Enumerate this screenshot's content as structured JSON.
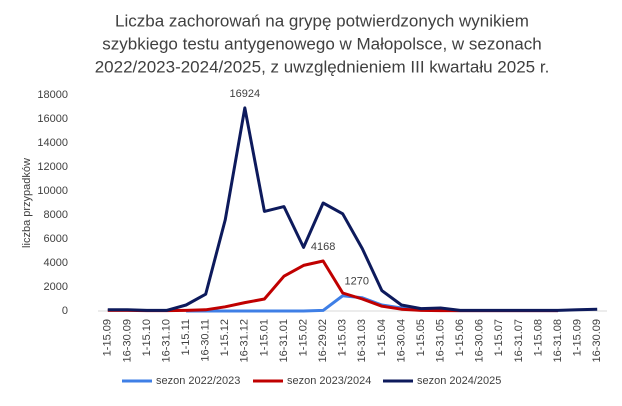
{
  "chart_data": {
    "type": "line",
    "title": [
      "Liczba zachorowań na grypę potwierdzonych wynikiem",
      "szybkiego testu antygenowego w Małopolsce, w sezonach",
      "2022/2023-2024/2025, z uwzględnieniem III kwartału 2025 r."
    ],
    "y_label": "liczba przypadków",
    "categories": [
      "1-15.09",
      "16-30.09",
      "1-15.10",
      "16-31.10",
      "1-15.11",
      "16-30.11",
      "1-15.12",
      "16-31.12",
      "1-15.01",
      "16-31.01",
      "1-15.02",
      "16-29.02",
      "1-15.03",
      "16-31.03",
      "1-15.04",
      "16-30.04",
      "1-15.05",
      "16-31.05",
      "1-15.06",
      "16-30.06",
      "1-15.07",
      "16-31.07",
      "1-15.08",
      "16-31.08",
      "1-15.09",
      "16-30.09"
    ],
    "series": [
      {
        "name": "sezon 2022/2023",
        "color": "#3f7fe6",
        "labeled": [
          12
        ],
        "values": [
          null,
          null,
          null,
          null,
          0,
          0,
          0,
          0,
          0,
          0,
          0,
          50,
          1270,
          1100,
          500,
          250,
          100,
          50,
          30,
          30,
          30,
          30,
          30,
          30,
          null,
          null
        ]
      },
      {
        "name": "sezon 2023/2024",
        "color": "#c00000",
        "labeled": [
          11
        ],
        "values": [
          50,
          50,
          30,
          30,
          50,
          100,
          350,
          700,
          1000,
          2900,
          3800,
          4168,
          1500,
          1000,
          400,
          150,
          50,
          30,
          30,
          30,
          30,
          30,
          30,
          30,
          null,
          null
        ]
      },
      {
        "name": "sezon 2024/2025",
        "color": "#0d1a5c",
        "labeled": [
          7
        ],
        "values": [
          100,
          100,
          50,
          50,
          500,
          1400,
          7600,
          16924,
          8300,
          8700,
          5300,
          9000,
          8100,
          5200,
          1700,
          500,
          200,
          250,
          50,
          50,
          50,
          50,
          50,
          50,
          100,
          150
        ]
      }
    ],
    "ylim": [
      0,
      18000
    ],
    "yticks": [
      0,
      2000,
      4000,
      6000,
      8000,
      10000,
      12000,
      14000,
      16000,
      18000
    ],
    "legend": "bottom"
  }
}
